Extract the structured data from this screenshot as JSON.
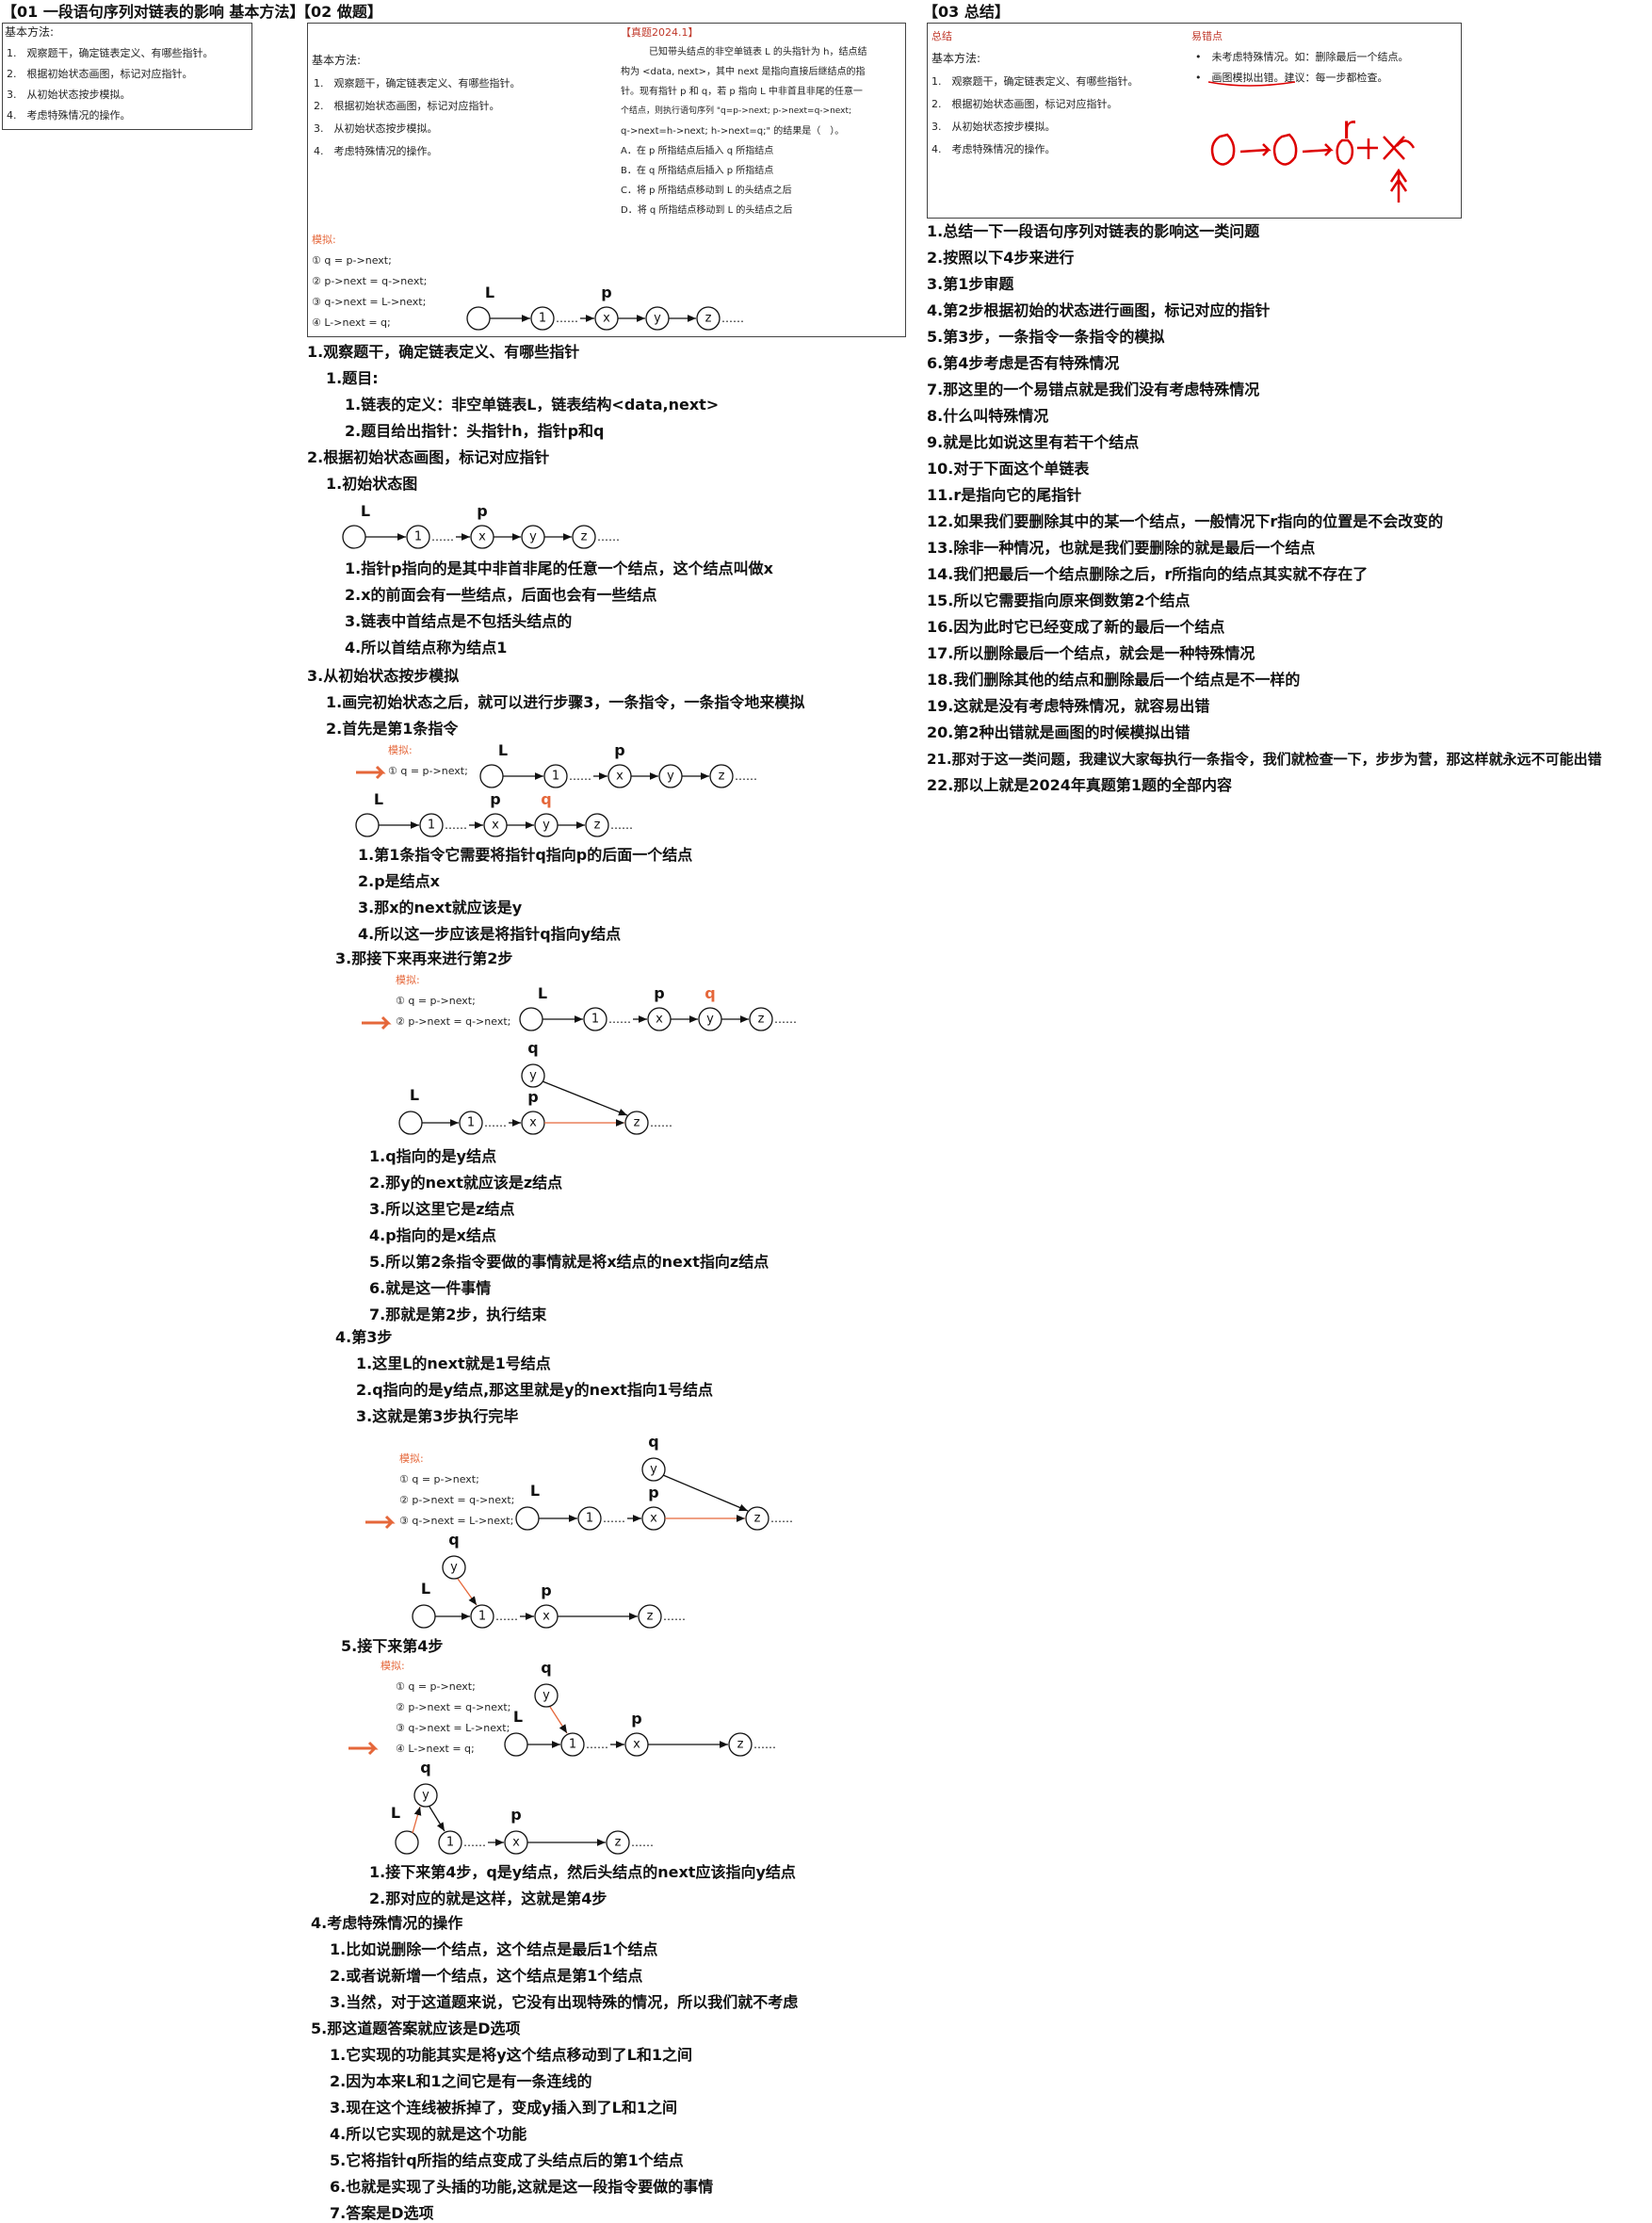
{
  "col1": {
    "header": "【01 一段语句序列对链表的影响 基本方法】",
    "box_title": "基本方法:",
    "steps": [
      "1.　观察题干，确定链表定义、有哪些指针。",
      "2.　根据初始状态画图，标记对应指针。",
      "3.　从初始状态按步模拟。",
      "4.　考虑特殊情况的操作。"
    ]
  },
  "col2": {
    "header": "【02 做题】",
    "box": {
      "left_title": "基本方法:",
      "left_steps": [
        "1.　观察题干，确定链表定义、有哪些指针。",
        "2.　根据初始状态画图，标记对应指针。",
        "3.　从初始状态按步模拟。",
        "4.　考虑特殊情况的操作。"
      ],
      "year": "【真题2024.1】",
      "q_lines": [
        "已知带头结点的非空单链表 L 的头指针为 h，结点结",
        "构为 <data, next>，其中 next 是指向直接后继结点的指",
        "针。现有指针 p 和 q，若 p 指向 L 中非首且非尾的任意一",
        "个结点，则执行语句序列 \"q=p->next; p->next=q->next;",
        "q->next=h->next; h->next=q;\" 的结果是（　）。",
        "A．在 p 所指结点后插入 q 所指结点",
        "B．在 q 所指结点后插入 p 所指结点",
        "C．将 p 所指结点移动到 L 的头结点之后",
        "D．将 q 所指结点移动到 L 的头结点之后"
      ],
      "sim_title": "模拟:",
      "sim_cmds": [
        "① q = p->next;",
        "② p->next = q->next;",
        "③ q->next = L->next;",
        "④ L->next = q;"
      ]
    },
    "lines": [
      "1.观察题干，确定链表定义、有哪些指针",
      "1.题目:",
      "1.链表的定义：非空单链表L，链表结构<data,next>",
      "2.题目给出指针：头指针h，指针p和q",
      "2.根据初始状态画图，标记对应指针",
      "1.初始状态图",
      "1.指针p指向的是其中非首非尾的任意一个结点，这个结点叫做x",
      "2.x的前面会有一些结点，后面也会有一些结点",
      "3.链表中首结点是不包括头结点的",
      "4.所以首结点称为结点1",
      "3.从初始状态按步模拟",
      "1.画完初始状态之后，就可以进行步骤3，一条指令，一条指令地来模拟",
      "2.首先是第1条指令",
      "1.第1条指令它需要将指针q指向p的后面一个结点",
      "2.p是结点x",
      "3.那x的next就应该是y",
      "4.所以这一步应该是将指针q指向y结点",
      "3.那接下来再来进行第2步",
      "1.q指向的是y结点",
      "2.那y的next就应该是z结点",
      "3.所以这里它是z结点",
      "4.p指向的是x结点",
      "5.所以第2条指令要做的事情就是将x结点的next指向z结点",
      "6.就是这一件事情",
      "7.那就是第2步，执行结束",
      "4.第3步",
      "1.这里L的next就是1号结点",
      "2.q指向的是y结点,那这里就是y的next指向1号结点",
      "3.这就是第3步执行完毕",
      "5.接下来第4步",
      "1.接下来第4步，q是y结点，然后头结点的next应该指向y结点",
      "2.那对应的就是这样，这就是第4步",
      "4.考虑特殊情况的操作",
      "1.比如说删除一个结点，这个结点是最后1个结点",
      "2.或者说新增一个结点，这个结点是第1个结点",
      "3.当然，对于这道题来说，它没有出现特殊的情况，所以我们就不考虑",
      "5.那这道题答案就应该是D选项",
      "1.它实现的功能其实是将y这个结点移动到了L和1之间",
      "2.因为本来L和1之间它是有一条连线的",
      "3.现在这个连线被拆掉了，变成y插入到了L和1之间",
      "4.所以它实现的就是这个功能",
      "5.它将指针q所指的结点变成了头结点后的第1个结点",
      "6.也就是实现了头插的功能,这就是这一段指令要做的事情",
      "7.答案是D选项"
    ],
    "diagram": {
      "L": "L",
      "p": "p",
      "q": "q",
      "n1": "1",
      "nx": "x",
      "ny": "y",
      "nz": "z",
      "dots": "……",
      "sim_title": "模拟:",
      "c1": "① q = p->next;",
      "c2": "② p->next = q->next;",
      "c3": "③ q->next = L->next;",
      "c4": "④ L->next = q;"
    }
  },
  "col3": {
    "header": "【03 总结】",
    "box": {
      "summary": "总结",
      "left_title": "基本方法:",
      "left_steps": [
        "1.　观察题干，确定链表定义、有哪些指针。",
        "2.　根据初始状态画图，标记对应指针。",
        "3.　从初始状态按步模拟。",
        "4.　考虑特殊情况的操作。"
      ],
      "mistakes": "易错点",
      "m1": "未考虑特殊情况。如：删除最后一个结点。",
      "m2": "画图模拟出错。建议：每一步都检查。",
      "hand": "r"
    },
    "lines": [
      "1.总结一下一段语句序列对链表的影响这一类问题",
      "2.按照以下4步来进行",
      "3.第1步审题",
      "4.第2步根据初始的状态进行画图，标记对应的指针",
      "5.第3步，一条指令一条指令的模拟",
      "6.第4步考虑是否有特殊情况",
      "7.那这里的一个易错点就是我们没有考虑特殊情况",
      "8.什么叫特殊情况",
      "9.就是比如说这里有若干个结点",
      "10.对于下面这个单链表",
      "11.r是指向它的尾指针",
      "12.如果我们要删除其中的某一个结点，一般情况下r指向的位置是不会改变的",
      "13.除非一种情况，也就是我们要删除的就是最后一个结点",
      "14.我们把最后一个结点删除之后，r所指向的结点其实就不存在了",
      "15.所以它需要指向原来倒数第2个结点",
      "16.因为此时它已经变成了新的最后一个结点",
      "17.所以删除最后一个结点，就会是一种特殊情况",
      "18.我们删除其他的结点和删除最后一个结点是不一样的",
      "19.这就是没有考虑特殊情况，就容易出错",
      "20.第2种出错就是画图的时候模拟出错",
      "21.那对于这一类问题，我建议大家每执行一条指令，我们就检查一下，步步为营，那这样就永远不可能出错",
      "22.那以上就是2024年真题第1题的全部内容"
    ]
  }
}
